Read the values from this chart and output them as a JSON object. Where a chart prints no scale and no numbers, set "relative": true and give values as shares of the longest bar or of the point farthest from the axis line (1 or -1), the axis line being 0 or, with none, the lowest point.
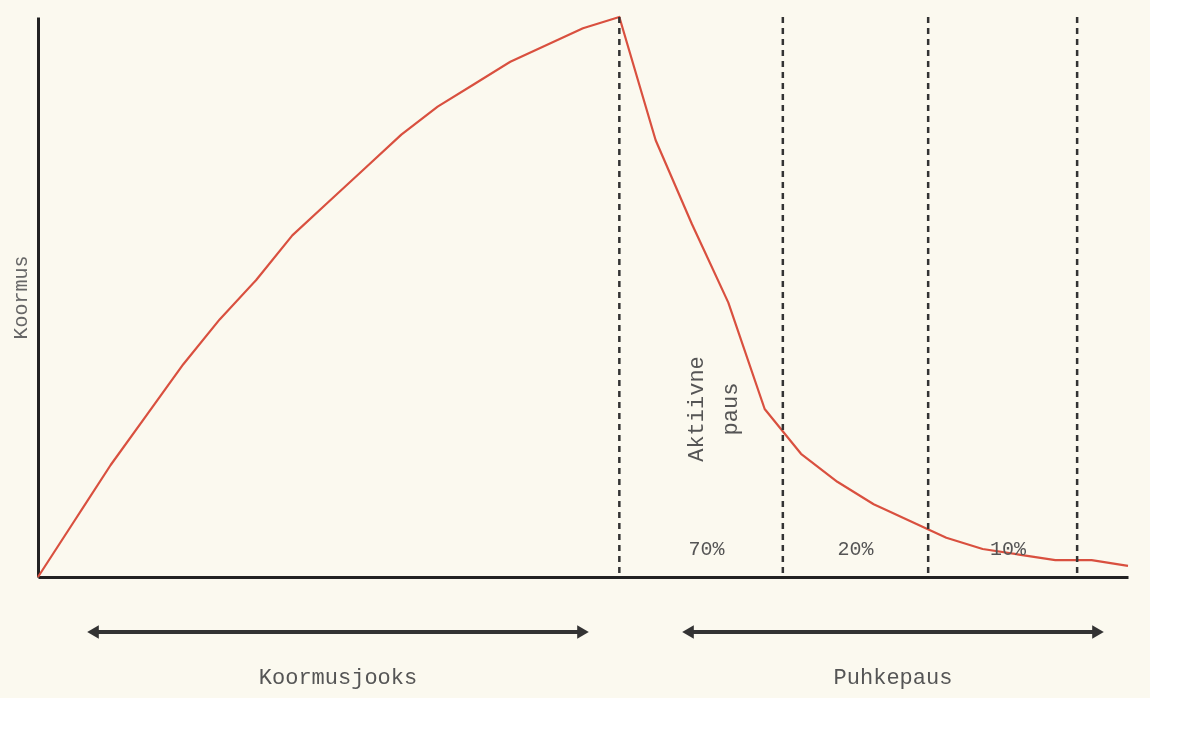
{
  "chart_data": {
    "type": "line",
    "relative": true,
    "ylabel": "Koormus",
    "tick_labels": false,
    "grid": false,
    "marker": "none",
    "line_style": "solid",
    "categories": [
      null,
      null,
      null,
      null,
      null,
      null,
      null,
      null,
      null,
      null,
      null,
      null,
      null,
      null,
      null,
      null,
      null,
      null,
      null,
      null,
      null,
      null,
      null,
      null,
      null,
      null,
      null,
      null,
      null,
      null,
      null
    ],
    "series": [
      {
        "color": "#d9503f",
        "values": [
          0,
          0.1,
          0.2,
          0.29,
          0.38,
          0.46,
          0.53,
          0.61,
          0.67,
          0.73,
          0.79,
          0.84,
          0.88,
          0.92,
          0.95,
          0.98,
          1.0,
          0.78,
          0.63,
          0.49,
          0.3,
          0.22,
          0.17,
          0.13,
          0.1,
          0.07,
          0.05,
          0.04,
          0.03,
          0.03,
          0.02
        ]
      }
    ],
    "ref_lines": [
      {
        "axis": "x",
        "line_style": "dashed",
        "color": "#333333"
      },
      {
        "axis": "x",
        "line_style": "dashed",
        "color": "#333333"
      },
      {
        "axis": "x",
        "line_style": "dashed",
        "color": "#333333"
      },
      {
        "axis": "x",
        "line_style": "dashed",
        "color": "#333333"
      }
    ],
    "annotations": [
      "Aktiivne paus",
      "70%",
      "20%",
      "10%",
      "Koormusjooks",
      "Puhkepaus"
    ]
  }
}
